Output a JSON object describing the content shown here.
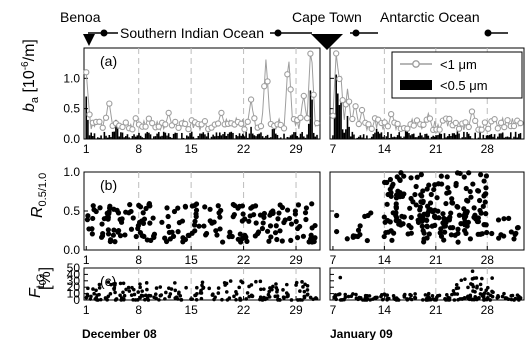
{
  "route": {
    "stations": [
      "Benoa",
      "Cape Town"
    ],
    "regions": [
      "Southern Indian Ocean",
      "Antarctic Ocean"
    ]
  },
  "months": [
    "December 08",
    "January 09"
  ],
  "ylabels": {
    "a": {
      "main": "b",
      "sub": "a",
      "unit_pre": " [10",
      "unit_sup": "-6",
      "unit_post": "/m]"
    },
    "b": {
      "main": "R",
      "sub": "0.5/1.0"
    },
    "c": {
      "main": "F",
      "sub": "LG",
      "unit": "[%]"
    }
  },
  "legend": {
    "items": [
      {
        "pre": "<1 ",
        "mu": "μ",
        "post": "m",
        "color": "#9e9e9e"
      },
      {
        "pre": "<0.5 ",
        "mu": "μ",
        "post": "m",
        "color": "#000000"
      }
    ]
  },
  "colors": {
    "grey_series": "#9e9e9e",
    "black_series": "#000000",
    "gridline": "#bdbdbd"
  },
  "chart_data": [
    {
      "type": "line",
      "panel": "(a)",
      "ylim": [
        0,
        1.5
      ],
      "yticks": [
        "0.0",
        "0.5",
        "1.0"
      ],
      "xticks_left": [
        "1",
        "8",
        "15",
        "22",
        "29"
      ],
      "xticks_right": [
        "7",
        "14",
        "21",
        "28"
      ],
      "series": [
        {
          "name": "<1 μm"
        },
        {
          "name": "<0.5 μm"
        }
      ],
      "x_units": "day of month (left: Dec 2008, right: Jan 2009)",
      "peaks_grey": [
        [
          1,
          0.95
        ],
        [
          4,
          0.5
        ],
        [
          12,
          0.28
        ],
        [
          19,
          0.3
        ],
        [
          23,
          0.5
        ],
        [
          25,
          1.2
        ],
        [
          28,
          1.25
        ],
        [
          30,
          0.6
        ],
        [
          31,
          1.45
        ],
        [
          7.5,
          1.4
        ],
        [
          8,
          1.05
        ],
        [
          9,
          0.7
        ],
        [
          10,
          0.45
        ],
        [
          11,
          0.35
        ],
        [
          15,
          0.3
        ],
        [
          20,
          0.28
        ],
        [
          26,
          0.35
        ]
      ],
      "peaks_black": [
        [
          1,
          0.7
        ],
        [
          5,
          0.35
        ],
        [
          15,
          0.15
        ],
        [
          23,
          0.2
        ],
        [
          26,
          0.25
        ],
        [
          31,
          1.0
        ],
        [
          7.5,
          1.25
        ],
        [
          8,
          0.8
        ],
        [
          9,
          0.4
        ],
        [
          13,
          0.2
        ],
        [
          17,
          0.2
        ],
        [
          24,
          0.15
        ]
      ]
    },
    {
      "type": "scatter",
      "panel": "(b)",
      "ylim": [
        0,
        1.0
      ],
      "yticks": [
        "0.0",
        "0.5",
        "1.0"
      ],
      "xticks_left": [
        "1",
        "8",
        "15",
        "22",
        "29"
      ],
      "xticks_right": [
        "7",
        "14",
        "21",
        "28"
      ],
      "typical_range_left": [
        0.1,
        0.6
      ],
      "typical_range_right": [
        0.2,
        1.0
      ]
    },
    {
      "type": "scatter",
      "panel": "(c)",
      "ylim": [
        0,
        50
      ],
      "yticks": [
        "0",
        "10",
        "20",
        "30",
        "40",
        "50"
      ],
      "xticks_left": [
        "1",
        "8",
        "15",
        "22",
        "29"
      ],
      "xticks_right": [
        "7",
        "14",
        "21",
        "28"
      ],
      "typical_range_left": [
        0,
        30
      ],
      "peak_right": [
        [
          26,
          45
        ],
        [
          8,
          35
        ]
      ]
    }
  ]
}
